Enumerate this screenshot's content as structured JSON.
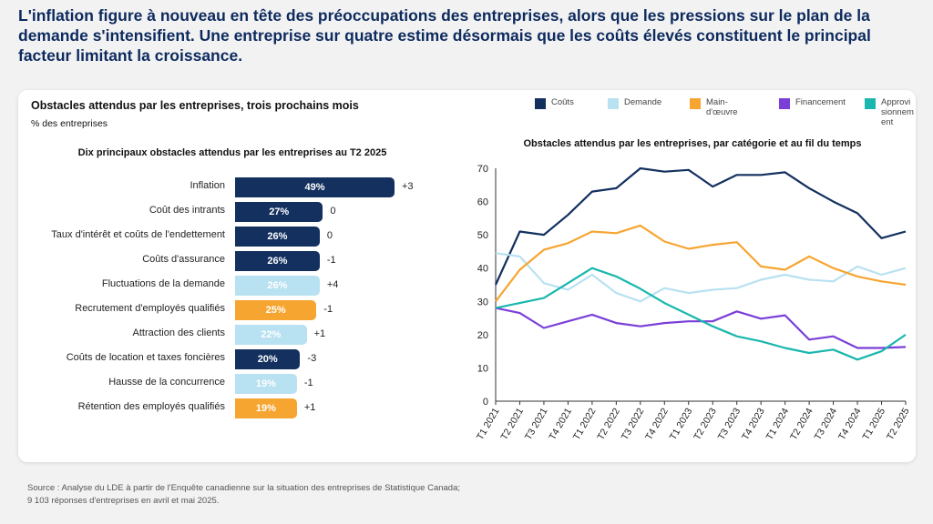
{
  "headline": "L'inflation figure à nouveau en tête des préoccupations des entreprises, alors que les pressions sur le plan de la demande s'intensifient. Une entreprise sur quatre estime désormais que les coûts élevés constituent le principal facteur limitant la croissance.",
  "card": {
    "title": "Obstacles attendus par les entreprises, trois prochains mois",
    "subtitle": "% des entreprises"
  },
  "legend": [
    {
      "label": "Coûts",
      "color": "#13305f"
    },
    {
      "label": "Demande",
      "color": "#b8e1f1"
    },
    {
      "label": "Main-d'œuvre",
      "color": "#f6a531"
    },
    {
      "label": "Financement",
      "color": "#7b3fd8"
    },
    {
      "label": "Approvi sionnem ent",
      "color": "#19b7ad"
    }
  ],
  "source": {
    "line1": "Source : Analyse du LDE à partir de l'Enquête canadienne sur la situation des entreprises de Statistique Canada;",
    "line2": "9 103 réponses d'entreprises en avril et mai 2025."
  },
  "chart_data": [
    {
      "type": "bar",
      "title": "Dix principaux obstacles attendus par les entreprises au T2 2025",
      "orientation": "horizontal",
      "categories": [
        "Inflation",
        "Coût des intrants",
        "Taux d'intérêt et coûts de l'endettement",
        "Coûts d'assurance",
        "Fluctuations de la demande",
        "Recrutement d'employés qualifiés",
        "Attraction des clients",
        "Coûts de location et taxes foncières",
        "Hausse de la concurrence",
        "Rétention des employés qualifiés"
      ],
      "values": [
        49,
        27,
        26,
        26,
        26,
        25,
        22,
        20,
        19,
        19
      ],
      "value_labels": [
        "49%",
        "27%",
        "26%",
        "26%",
        "26%",
        "25%",
        "22%",
        "20%",
        "19%",
        "19%"
      ],
      "changes": [
        "+3",
        "0",
        "0",
        "-1",
        "+4",
        "-1",
        "+1",
        "-3",
        "-1",
        "+1"
      ],
      "groups": [
        "Coûts",
        "Coûts",
        "Coûts",
        "Coûts",
        "Demande",
        "Main-d'œuvre",
        "Demande",
        "Coûts",
        "Demande",
        "Main-d'œuvre"
      ]
    },
    {
      "type": "line",
      "title": "Obstacles attendus par les entreprises, par catégorie et au fil du temps",
      "x": [
        "T1 2021",
        "T2 2021",
        "T3 2021",
        "T4 2021",
        "T1 2022",
        "T2 2022",
        "T3 2022",
        "T4 2022",
        "T1 2023",
        "T2 2023",
        "T3 2023",
        "T4 2023",
        "T1 2024",
        "T2 2024",
        "T3 2024",
        "T4 2024",
        "T1 2025",
        "T2 2025"
      ],
      "ylim": [
        0,
        70
      ],
      "yticks": [
        0,
        10,
        20,
        30,
        40,
        50,
        60,
        70
      ],
      "series": [
        {
          "name": "Coûts",
          "values": [
            35,
            51,
            50,
            56,
            63,
            64,
            70,
            69,
            69.5,
            64.5,
            68,
            68,
            68.8,
            64,
            60,
            56.5,
            49,
            51
          ]
        },
        {
          "name": "Demande",
          "values": [
            44.5,
            43.5,
            35.5,
            33.5,
            38,
            32.5,
            30,
            34,
            32.5,
            33.5,
            34,
            36.5,
            38,
            36.5,
            36,
            40.5,
            38,
            40
          ]
        },
        {
          "name": "Main-d'œuvre",
          "values": [
            30,
            39.5,
            45.5,
            47.5,
            51,
            50.5,
            52.8,
            48,
            45.8,
            47,
            47.8,
            40.5,
            39.5,
            43.5,
            40,
            37.5,
            36,
            35
          ]
        },
        {
          "name": "Financement",
          "values": [
            28,
            26.5,
            22,
            24,
            26,
            23.5,
            22.5,
            23.5,
            24,
            24,
            27,
            24.8,
            25.8,
            18.5,
            19.5,
            16,
            16,
            16.3
          ]
        },
        {
          "name": "Approvisionnement",
          "values": [
            28,
            29.5,
            31,
            35.5,
            40,
            37.5,
            33.8,
            29.5,
            26,
            22.5,
            19.5,
            18,
            16,
            14.5,
            15.5,
            12.5,
            15,
            20
          ]
        }
      ]
    }
  ]
}
